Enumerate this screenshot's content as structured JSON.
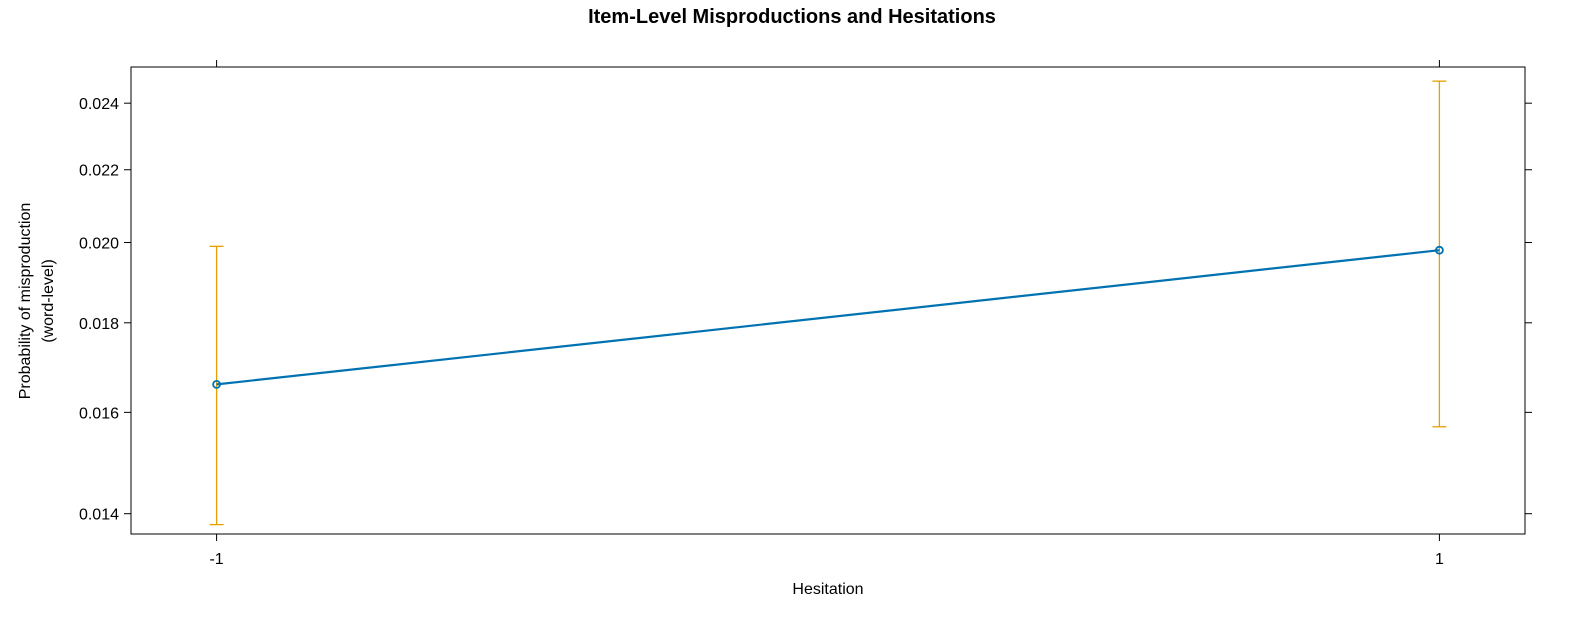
{
  "chart_data": {
    "type": "line",
    "title": "Item-Level Misproductions and Hesitations",
    "xlabel": "Hesitation",
    "ylabel_lines": [
      "Probability of misproduction",
      "(word-level)"
    ],
    "x_ticks": [
      -1,
      1
    ],
    "x_tick_labels": [
      "-1",
      "1"
    ],
    "y_scale": "logit",
    "y_ticks": [
      0.014,
      0.016,
      0.018,
      0.02,
      0.022,
      0.024
    ],
    "y_tick_labels": [
      "0.014",
      "0.016",
      "0.018",
      "0.020",
      "0.022",
      "0.024"
    ],
    "ylim": [
      0.01363,
      0.02516
    ],
    "xlim": [
      -1.14,
      1.14
    ],
    "grid": false,
    "series": [
      {
        "x": [
          -1,
          1
        ],
        "y": [
          0.0166,
          0.0198
        ],
        "lower": [
          0.0138,
          0.0157
        ],
        "upper": [
          0.0199,
          0.0247
        ]
      }
    ],
    "colors": {
      "line": "#0072B2",
      "error_bar": "#E69F00",
      "axis": "#000000"
    }
  }
}
